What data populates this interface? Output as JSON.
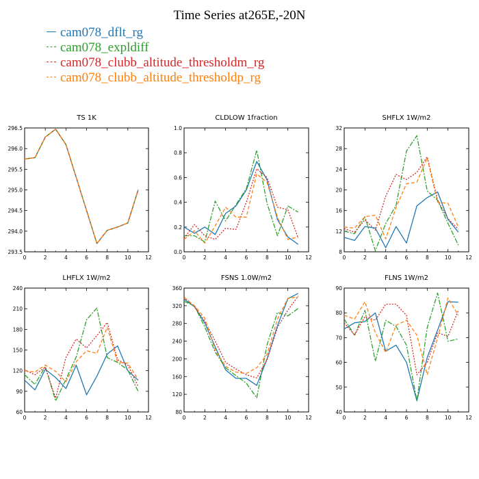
{
  "title": "Time Series at265E,-20N",
  "legend": [
    {
      "label": "cam078_dflt_rg",
      "color": "#1f77b4",
      "dash": "solid"
    },
    {
      "label": "cam078_expldiff",
      "color": "#2ca02c",
      "dash": "dashdot"
    },
    {
      "label": "cam078_clubb_altitude_thresholdm_rg",
      "color": "#d62728",
      "dash": "dotted"
    },
    {
      "label": "cam078_clubb_altitude_thresholdp_rg",
      "color": "#ff7f0e",
      "dash": "dashed"
    }
  ],
  "chart_data": [
    {
      "type": "line",
      "title": "TS   1K",
      "x": [
        0,
        1,
        2,
        3,
        4,
        5,
        6,
        7,
        8,
        9,
        10,
        11
      ],
      "xlim": [
        0,
        12
      ],
      "xticks": [
        0,
        2,
        4,
        6,
        8,
        10,
        12
      ],
      "ylim": [
        293.5,
        296.5
      ],
      "yticks": [
        293.5,
        294.0,
        294.5,
        295.0,
        295.5,
        296.0,
        296.5
      ],
      "ytick_labels": [
        "293.5",
        "294.0",
        "294.5",
        "295.0",
        "295.5",
        "296.0",
        "296.5"
      ],
      "series": [
        {
          "name": "cam078_dflt_rg",
          "values": [
            295.75,
            295.78,
            296.28,
            296.47,
            296.1,
            295.3,
            294.5,
            293.7,
            294.02,
            294.1,
            294.2,
            295.0
          ]
        },
        {
          "name": "cam078_expldiff",
          "values": [
            295.75,
            295.78,
            296.28,
            296.47,
            296.1,
            295.3,
            294.5,
            293.7,
            294.02,
            294.1,
            294.2,
            295.0
          ]
        },
        {
          "name": "cam078_clubb_altitude_thresholdm_rg",
          "values": [
            295.75,
            295.78,
            296.28,
            296.47,
            296.1,
            295.3,
            294.5,
            293.7,
            294.02,
            294.1,
            294.2,
            295.0
          ]
        },
        {
          "name": "cam078_clubb_altitude_thresholdp_rg",
          "values": [
            295.75,
            295.78,
            296.28,
            296.47,
            296.1,
            295.3,
            294.5,
            293.7,
            294.02,
            294.1,
            294.2,
            295.0
          ]
        }
      ]
    },
    {
      "type": "line",
      "title": "CLDLOW   1fraction",
      "x": [
        0,
        1,
        2,
        3,
        4,
        5,
        6,
        7,
        8,
        9,
        10,
        11
      ],
      "xlim": [
        0,
        12
      ],
      "xticks": [
        0,
        2,
        4,
        6,
        8,
        10,
        12
      ],
      "ylim": [
        0,
        1
      ],
      "yticks": [
        0,
        0.2,
        0.4,
        0.6,
        0.8,
        1.0
      ],
      "ytick_labels": [
        "0.0",
        "0.2",
        "0.4",
        "0.6",
        "0.8",
        "1.0"
      ],
      "series": [
        {
          "name": "cam078_dflt_rg",
          "values": [
            0.2,
            0.15,
            0.2,
            0.14,
            0.31,
            0.37,
            0.5,
            0.73,
            0.58,
            0.26,
            0.12,
            0.06
          ]
        },
        {
          "name": "cam078_expldiff",
          "values": [
            0.13,
            0.13,
            0.08,
            0.41,
            0.25,
            0.38,
            0.51,
            0.82,
            0.39,
            0.13,
            0.37,
            0.32
          ]
        },
        {
          "name": "cam078_clubb_altitude_thresholdm_rg",
          "values": [
            0.11,
            0.22,
            0.13,
            0.1,
            0.19,
            0.18,
            0.4,
            0.67,
            0.6,
            0.36,
            0.34,
            0.11
          ]
        },
        {
          "name": "cam078_clubb_altitude_thresholdp_rg",
          "values": [
            0.1,
            0.17,
            0.07,
            0.21,
            0.36,
            0.28,
            0.28,
            0.63,
            0.56,
            0.28,
            0.1,
            0.12
          ]
        }
      ]
    },
    {
      "type": "line",
      "title": "SHFLX   1W/m2",
      "x": [
        0,
        1,
        2,
        3,
        4,
        5,
        6,
        7,
        8,
        9,
        10,
        11
      ],
      "xlim": [
        0,
        12
      ],
      "xticks": [
        0,
        2,
        4,
        6,
        8,
        10,
        12
      ],
      "ylim": [
        8,
        32
      ],
      "yticks": [
        8,
        12,
        16,
        20,
        24,
        28,
        32
      ],
      "ytick_labels": [
        "8",
        "12",
        "16",
        "20",
        "24",
        "28",
        "32"
      ],
      "series": [
        {
          "name": "cam078_dflt_rg",
          "values": [
            10.8,
            10.2,
            12.9,
            12.6,
            8.8,
            12.9,
            9.7,
            16.9,
            18.5,
            19.6,
            14.3,
            11.8
          ]
        },
        {
          "name": "cam078_expldiff",
          "values": [
            12.0,
            11.5,
            14.8,
            8.2,
            13.5,
            17.0,
            27.5,
            30.5,
            19.8,
            18.0,
            13.5,
            9.3
          ]
        },
        {
          "name": "cam078_clubb_altitude_thresholdm_rg",
          "values": [
            12.5,
            11.8,
            14.2,
            12.2,
            18.8,
            23.0,
            22.0,
            23.4,
            26.4,
            18.0,
            14.4,
            12.4
          ]
        },
        {
          "name": "cam078_clubb_altitude_thresholdp_rg",
          "values": [
            12.8,
            12.6,
            14.8,
            15.1,
            10.5,
            16.6,
            21.2,
            21.5,
            26.2,
            17.6,
            17.4,
            12.8
          ]
        }
      ]
    },
    {
      "type": "line",
      "title": "LHFLX   1W/m2",
      "x": [
        0,
        1,
        2,
        3,
        4,
        5,
        6,
        7,
        8,
        9,
        10,
        11
      ],
      "xlim": [
        0,
        12
      ],
      "xticks": [
        0,
        2,
        4,
        6,
        8,
        10,
        12
      ],
      "ylim": [
        60,
        240
      ],
      "yticks": [
        60,
        90,
        120,
        150,
        180,
        210,
        240
      ],
      "ytick_labels": [
        "60",
        "90",
        "120",
        "150",
        "180",
        "210",
        "240"
      ],
      "series": [
        {
          "name": "cam078_dflt_rg",
          "values": [
            106,
            92,
            122,
            110,
            94,
            128,
            85,
            112,
            144,
            156,
            120,
            106
          ]
        },
        {
          "name": "cam078_expldiff",
          "values": [
            114,
            100,
            126,
            76,
            107,
            140,
            194,
            211,
            139,
            132,
            121,
            90
          ]
        },
        {
          "name": "cam078_clubb_altitude_thresholdm_rg",
          "values": [
            121,
            114,
            125,
            80,
            139,
            166,
            153,
            171,
            190,
            136,
            128,
            97
          ]
        },
        {
          "name": "cam078_clubb_altitude_thresholdp_rg",
          "values": [
            120,
            118,
            128,
            119,
            104,
            133,
            149,
            145,
            183,
            132,
            131,
            107
          ]
        }
      ]
    },
    {
      "type": "line",
      "title": "FSNS   1.0W/m2",
      "x": [
        0,
        1,
        2,
        3,
        4,
        5,
        6,
        7,
        8,
        9,
        10,
        11
      ],
      "xlim": [
        0,
        12
      ],
      "xticks": [
        0,
        2,
        4,
        6,
        8,
        10,
        12
      ],
      "ylim": [
        80,
        360
      ],
      "yticks": [
        80,
        120,
        160,
        200,
        240,
        280,
        320,
        360
      ],
      "ytick_labels": [
        "80",
        "120",
        "160",
        "200",
        "240",
        "280",
        "320",
        "360"
      ],
      "series": [
        {
          "name": "cam078_dflt_rg",
          "values": [
            335,
            318,
            281,
            227,
            175,
            156,
            156,
            140,
            200,
            275,
            336,
            348
          ]
        },
        {
          "name": "cam078_expldiff",
          "values": [
            330,
            320,
            272,
            215,
            180,
            162,
            145,
            112,
            232,
            305,
            297,
            314
          ]
        },
        {
          "name": "cam078_clubb_altitude_thresholdm_rg",
          "values": [
            340,
            318,
            285,
            240,
            192,
            177,
            164,
            157,
            198,
            271,
            310,
            342
          ]
        },
        {
          "name": "cam078_clubb_altitude_thresholdp_rg",
          "values": [
            338,
            320,
            292,
            220,
            183,
            170,
            167,
            180,
            210,
            290,
            337,
            340
          ]
        }
      ]
    },
    {
      "type": "line",
      "title": "FLNS   1W/m2",
      "x": [
        0,
        1,
        2,
        3,
        4,
        5,
        6,
        7,
        8,
        9,
        10,
        11
      ],
      "xlim": [
        0,
        12
      ],
      "xticks": [
        0,
        2,
        4,
        6,
        8,
        10,
        12
      ],
      "ylim": [
        40,
        90
      ],
      "yticks": [
        40,
        50,
        60,
        70,
        80,
        90
      ],
      "ytick_labels": [
        "40",
        "50",
        "60",
        "70",
        "80",
        "90"
      ],
      "series": [
        {
          "name": "cam078_dflt_rg",
          "values": [
            73.5,
            76,
            76.5,
            80,
            64.5,
            67,
            60,
            44.5,
            62,
            73,
            84.5,
            84.3
          ]
        },
        {
          "name": "cam078_expldiff",
          "values": [
            77.5,
            71,
            81,
            60.5,
            77,
            74.5,
            67,
            44.5,
            74,
            88,
            68.5,
            69.5
          ]
        },
        {
          "name": "cam078_clubb_altitude_thresholdm_rg",
          "values": [
            76,
            71,
            78.5,
            77,
            83.5,
            83.5,
            79,
            55,
            60,
            72,
            70.5,
            81
          ]
        },
        {
          "name": "cam078_clubb_altitude_thresholdp_rg",
          "values": [
            79,
            77.5,
            84.5,
            72,
            64,
            75,
            77,
            71,
            55,
            70,
            86,
            79
          ]
        }
      ]
    }
  ]
}
